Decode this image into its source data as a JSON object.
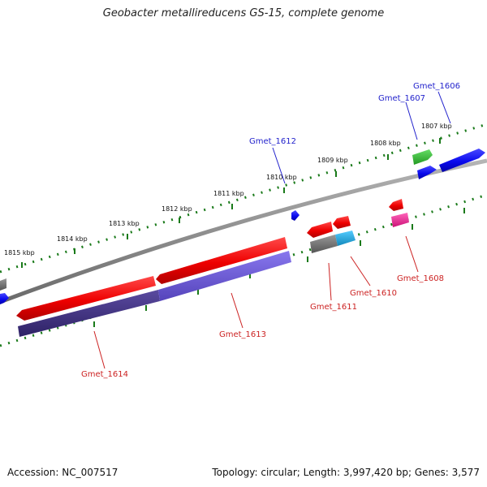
{
  "header": {
    "title": "Geobacter metallireducens GS-15, complete genome"
  },
  "footer": {
    "accession": "Accession: NC_007517",
    "topology": "Topology: circular; Length: 3,997,420 bp; Genes: 3,577"
  },
  "scale": {
    "ticks": [
      "1815 kbp",
      "1814 kbp",
      "1813 kbp",
      "1812 kbp",
      "1811 kbp",
      "1810 kbp",
      "1809 kbp",
      "1808 kbp",
      "1807 kbp"
    ]
  },
  "genes": {
    "forward": [
      {
        "label": "Gmet_1606",
        "color": "#0a0aee"
      },
      {
        "label": "Gmet_1607",
        "color": "#0a0aee"
      },
      {
        "label": "Gmet_1612",
        "color": "#0a0aee"
      }
    ],
    "reverse": [
      {
        "label": "Gmet_1608",
        "color": "#dd0000"
      },
      {
        "label": "Gmet_1610",
        "color": "#dd0000"
      },
      {
        "label": "Gmet_1611",
        "color": "#dd0000"
      },
      {
        "label": "Gmet_1613",
        "color": "#dd0000"
      },
      {
        "label": "Gmet_1614",
        "color": "#dd0000"
      }
    ]
  },
  "colors": {
    "backbone": "#8a8a8a",
    "tick_marks": "#1a7a1a",
    "gene_red": "#ee0000",
    "gene_blue": "#0a0aee",
    "gene_green": "#33bb33",
    "gene_gray": "#777777",
    "gene_cyan": "#22aadd",
    "gene_pink": "#ee2288",
    "gene_purple": "#6655cc",
    "gene_navy": "#443388"
  }
}
